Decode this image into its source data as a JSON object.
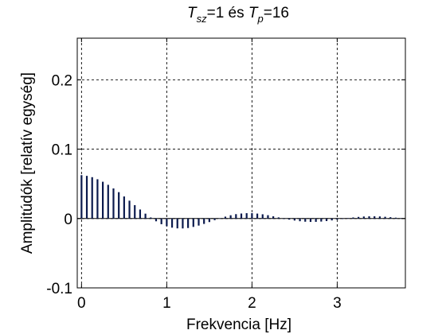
{
  "chart_data": {
    "type": "bar",
    "title": {
      "t1": "T",
      "t1_sub": "sz",
      "t1_rest": "=1 és ",
      "t2": "T",
      "t2_sub": "p",
      "t2_rest": "=16"
    },
    "xlabel": "Frekvencia [Hz]",
    "ylabel": "Amplitúdók [relatív egység]",
    "xlim": [
      -0.05,
      3.8
    ],
    "ylim": [
      -0.1,
      0.26
    ],
    "xticks": [
      0,
      1,
      2,
      3
    ],
    "xtick_labels": [
      "0",
      "1",
      "2",
      "3"
    ],
    "yticks": [
      -0.1,
      0,
      0.1,
      0.2
    ],
    "ytick_labels": [
      "-0.1",
      "0",
      "0.1",
      "0.2"
    ],
    "grid": true,
    "legend": "none",
    "bar_color": "#0b1a4d",
    "x": [
      0,
      0.0625,
      0.125,
      0.1875,
      0.25,
      0.3125,
      0.375,
      0.4375,
      0.5,
      0.5625,
      0.625,
      0.6875,
      0.75,
      0.8125,
      0.875,
      0.9375,
      1,
      1.0625,
      1.125,
      1.1875,
      1.25,
      1.3125,
      1.375,
      1.4375,
      1.5,
      1.5625,
      1.625,
      1.6875,
      1.75,
      1.8125,
      1.875,
      1.9375,
      2,
      2.0625,
      2.125,
      2.1875,
      2.25,
      2.3125,
      2.375,
      2.4375,
      2.5,
      2.5625,
      2.625,
      2.6875,
      2.75,
      2.8125,
      2.875,
      2.9375,
      3,
      3.0625,
      3.125,
      3.1875,
      3.25,
      3.3125,
      3.375,
      3.4375,
      3.5,
      3.5625,
      3.625,
      3.6875,
      3.75
    ],
    "values": [
      0.0625,
      0.0615,
      0.0596,
      0.0566,
      0.053,
      0.0486,
      0.0434,
      0.038,
      0.0318,
      0.0257,
      0.0193,
      0.013,
      0.007,
      0.0015,
      -0.004,
      -0.0082,
      -0.011,
      -0.0132,
      -0.0142,
      -0.0143,
      -0.0137,
      -0.0121,
      -0.0102,
      -0.0078,
      -0.0051,
      -0.0024,
      0.0003,
      0.0027,
      0.0047,
      0.0063,
      0.0072,
      0.0077,
      0.0077,
      0.0071,
      0.0061,
      0.0048,
      0.0032,
      0.0016,
      -0.0001,
      -0.0016,
      -0.0029,
      -0.0039,
      -0.0046,
      -0.0049,
      -0.0048,
      -0.0044,
      -0.0037,
      -0.0027,
      -0.0016,
      -0.0005,
      0.0006,
      0.0015,
      0.0023,
      0.0029,
      0.0032,
      0.0032,
      0.003,
      0.0025,
      0.0019,
      0.0012,
      0.0004
    ]
  }
}
